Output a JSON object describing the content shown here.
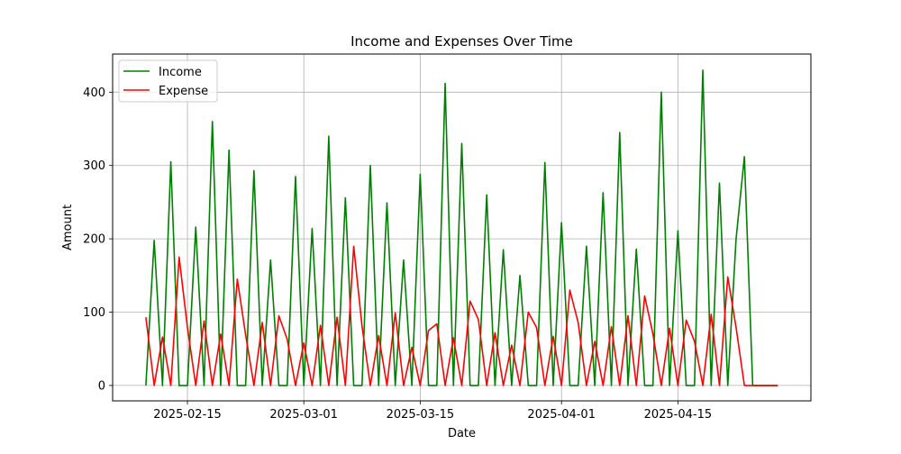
{
  "chart_data": {
    "type": "line",
    "title": "Income and Expenses Over Time",
    "xlabel": "Date",
    "ylabel": "Amount",
    "grid": true,
    "legend_position": "upper-left",
    "x_tick_labels": [
      "2025-02-15",
      "2025-03-01",
      "2025-03-15",
      "2025-04-01",
      "2025-04-15"
    ],
    "x_tick_dates": [
      "2025-02-15",
      "2025-03-01",
      "2025-03-15",
      "2025-04-01",
      "2025-04-15"
    ],
    "xlim": [
      "2025-02-06",
      "2025-05-01"
    ],
    "y_ticks": [
      0,
      100,
      200,
      300,
      400
    ],
    "ylim": [
      -21,
      452
    ],
    "x": [
      "2025-02-10",
      "2025-02-11",
      "2025-02-12",
      "2025-02-13",
      "2025-02-14",
      "2025-02-15",
      "2025-02-16",
      "2025-02-17",
      "2025-02-18",
      "2025-02-19",
      "2025-02-20",
      "2025-02-21",
      "2025-02-22",
      "2025-02-23",
      "2025-02-24",
      "2025-02-25",
      "2025-02-26",
      "2025-02-27",
      "2025-02-28",
      "2025-03-01",
      "2025-03-02",
      "2025-03-03",
      "2025-03-04",
      "2025-03-05",
      "2025-03-06",
      "2025-03-07",
      "2025-03-08",
      "2025-03-09",
      "2025-03-10",
      "2025-03-11",
      "2025-03-12",
      "2025-03-13",
      "2025-03-14",
      "2025-03-15",
      "2025-03-16",
      "2025-03-17",
      "2025-03-18",
      "2025-03-19",
      "2025-03-20",
      "2025-03-21",
      "2025-03-22",
      "2025-03-23",
      "2025-03-24",
      "2025-03-25",
      "2025-03-26",
      "2025-03-27",
      "2025-03-28",
      "2025-03-29",
      "2025-03-30",
      "2025-03-31",
      "2025-04-01",
      "2025-04-02",
      "2025-04-03",
      "2025-04-04",
      "2025-04-05",
      "2025-04-06",
      "2025-04-07",
      "2025-04-08",
      "2025-04-09",
      "2025-04-10",
      "2025-04-11",
      "2025-04-12",
      "2025-04-13",
      "2025-04-14",
      "2025-04-15",
      "2025-04-16",
      "2025-04-17",
      "2025-04-18",
      "2025-04-19",
      "2025-04-20",
      "2025-04-21",
      "2025-04-22",
      "2025-04-23",
      "2025-04-24",
      "2025-04-25",
      "2025-04-26",
      "2025-04-27"
    ],
    "series": [
      {
        "name": "Income",
        "color": "#008000",
        "values": [
          0,
          198,
          0,
          305,
          0,
          0,
          216,
          0,
          360,
          0,
          321,
          0,
          0,
          293,
          0,
          171,
          0,
          0,
          285,
          0,
          214,
          0,
          340,
          0,
          256,
          0,
          0,
          300,
          0,
          249,
          0,
          171,
          0,
          288,
          0,
          0,
          412,
          0,
          330,
          0,
          0,
          260,
          0,
          185,
          0,
          150,
          0,
          0,
          304,
          0,
          222,
          0,
          0,
          190,
          0,
          263,
          0,
          345,
          0,
          186,
          0,
          0,
          400,
          0,
          211,
          0,
          0,
          430,
          0,
          276,
          0,
          200,
          312,
          0,
          0,
          0,
          0
        ]
      },
      {
        "name": "Expense",
        "color": "#ff0000",
        "values": [
          93,
          0,
          66,
          0,
          175,
          79,
          0,
          88,
          0,
          70,
          0,
          145,
          69,
          0,
          86,
          0,
          95,
          63,
          0,
          58,
          0,
          82,
          0,
          93,
          0,
          190,
          81,
          0,
          68,
          0,
          99,
          0,
          52,
          0,
          75,
          84,
          0,
          65,
          0,
          115,
          90,
          0,
          72,
          0,
          55,
          0,
          100,
          79,
          0,
          67,
          0,
          130,
          86,
          0,
          60,
          0,
          80,
          0,
          95,
          0,
          122,
          70,
          0,
          78,
          0,
          89,
          60,
          0,
          97,
          0,
          148,
          79,
          0,
          0,
          0,
          0,
          0
        ]
      }
    ]
  }
}
